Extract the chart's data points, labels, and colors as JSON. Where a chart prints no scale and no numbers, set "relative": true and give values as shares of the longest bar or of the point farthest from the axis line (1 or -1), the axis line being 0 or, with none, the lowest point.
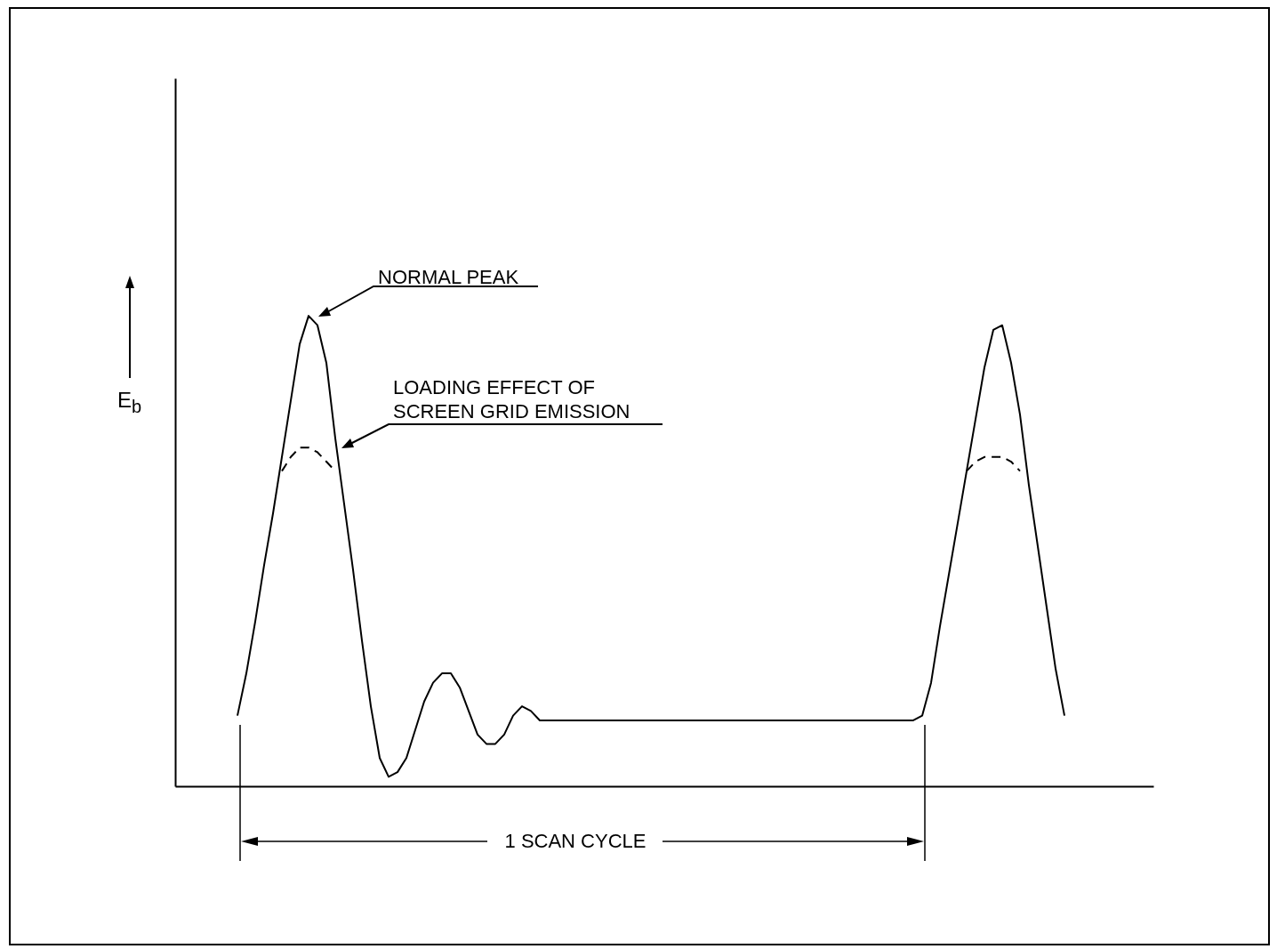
{
  "chart_data": {
    "type": "line",
    "relative": true,
    "categories": [
      null,
      null,
      null,
      null,
      null,
      null,
      null,
      null,
      null,
      null,
      null,
      null,
      null,
      null,
      null,
      null,
      null,
      null,
      null,
      null,
      null,
      null,
      null,
      null,
      null,
      null,
      null,
      null,
      null,
      null,
      null,
      null,
      null,
      null,
      null,
      null,
      null,
      null,
      null,
      null,
      null,
      null,
      null,
      null,
      null,
      null,
      null,
      null,
      null,
      null,
      null,
      null,
      null,
      null,
      null,
      null,
      null,
      null,
      null,
      null,
      null,
      null,
      null,
      null,
      null,
      null,
      null,
      null,
      null,
      null,
      null,
      null,
      null,
      null,
      null,
      null,
      null,
      null,
      null,
      null,
      null,
      null,
      null,
      null,
      null,
      null,
      null,
      null,
      null,
      null,
      null,
      null,
      null,
      null,
      null,
      null,
      null,
      null,
      null,
      null,
      null,
      null,
      null,
      null,
      null,
      null,
      null,
      null,
      null,
      null,
      null
    ],
    "ylabel": "E$_{b}$",
    "series": [
      {
        "color": "#000000",
        "line_style": "solid",
        "values": [
          null,
          null,
          null,
          null,
          null,
          null,
          null,
          0.15,
          0.24,
          0.35,
          0.47,
          0.58,
          0.7,
          0.82,
          0.94,
          1,
          0.98,
          0.9,
          0.74,
          0.6,
          0.46,
          0.31,
          0.17,
          0.06,
          0.02,
          0.03,
          0.06,
          0.12,
          0.18,
          0.22,
          0.24,
          0.24,
          0.21,
          0.16,
          0.11,
          0.09,
          0.09,
          0.11,
          0.15,
          0.17,
          0.16,
          0.14,
          0.14,
          0.14,
          0.14,
          0.14,
          0.14,
          0.14,
          0.14,
          0.14,
          0.14,
          0.14,
          0.14,
          0.14,
          0.14,
          0.14,
          0.14,
          0.14,
          0.14,
          0.14,
          0.14,
          0.14,
          0.14,
          0.14,
          0.14,
          0.14,
          0.14,
          0.14,
          0.14,
          0.14,
          0.14,
          0.14,
          0.14,
          0.14,
          0.14,
          0.14,
          0.14,
          0.14,
          0.14,
          0.14,
          0.14,
          0.14,
          0.14,
          0.14,
          0.15,
          0.22,
          0.34,
          0.45,
          0.56,
          0.67,
          0.78,
          0.89,
          0.97,
          0.98,
          0.9,
          0.79,
          0.64,
          0.51,
          0.38,
          0.25,
          0.15,
          null,
          null,
          null,
          null,
          null,
          null,
          null,
          null,
          null,
          null
        ]
      },
      {
        "color": "#000000",
        "line_style": "dashed",
        "values": [
          null,
          null,
          null,
          null,
          null,
          null,
          null,
          null,
          null,
          null,
          null,
          null,
          0.67,
          0.7,
          0.72,
          0.72,
          0.71,
          0.69,
          0.67,
          null,
          null,
          null,
          null,
          null,
          null,
          null,
          null,
          null,
          null,
          null,
          null,
          null,
          null,
          null,
          null,
          null,
          null,
          null,
          null,
          null,
          null,
          null,
          null,
          null,
          null,
          null,
          null,
          null,
          null,
          null,
          null,
          null,
          null,
          null,
          null,
          null,
          null,
          null,
          null,
          null,
          null,
          null,
          null,
          null,
          null,
          null,
          null,
          null,
          null,
          null,
          null,
          null,
          null,
          null,
          null,
          null,
          null,
          null,
          null,
          null,
          null,
          null,
          null,
          null,
          null,
          null,
          null,
          null,
          null,
          0.67,
          0.69,
          0.7,
          0.7,
          0.7,
          0.69,
          0.67,
          null,
          null,
          null,
          null,
          null,
          null,
          null,
          null,
          null,
          null,
          null,
          null,
          null,
          null,
          null
        ]
      }
    ],
    "annotations": [
      "NORMAL PEAK",
      "LOADING EFFECT OF",
      "SCREEN GRID EMISSION",
      "1 SCAN CYCLE"
    ]
  }
}
